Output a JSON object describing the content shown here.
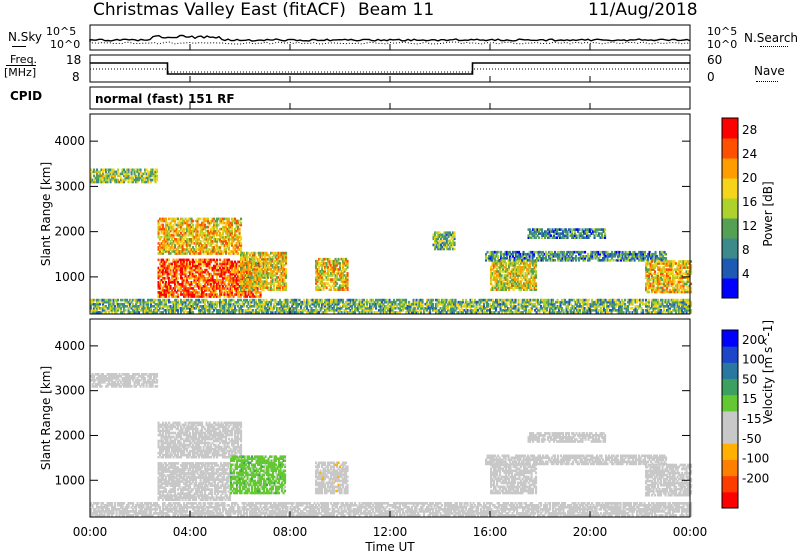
{
  "header": {
    "title": "Christmas Valley East (fitACF)",
    "beam": "Beam 11",
    "date": "11/Aug/2018"
  },
  "top_panels": {
    "nsky_label": "N.Sky",
    "nsearch_label": "N.Search",
    "count_ticks_left": [
      "10^5",
      "10^0"
    ],
    "count_ticks_right": [
      "10^5",
      "10^0"
    ],
    "freq_label_line1": "Freq.",
    "freq_label_line2": "[MHz]",
    "freq_ticks": [
      "18",
      "8"
    ],
    "nave_label": "Nave",
    "nave_ticks": [
      "60",
      "0"
    ],
    "cpid_label": "CPID",
    "cpid_value": "normal (fast) 151 RF"
  },
  "colors": {
    "power_scale": [
      "#0000ff",
      "#1e5ab4",
      "#3d8a8a",
      "#54a054",
      "#aed22c",
      "#f5d41a",
      "#ff9c00",
      "#ff5000",
      "#ff0000"
    ],
    "velocity_scale": [
      "#ff0000",
      "#ff3c00",
      "#ff8000",
      "#ffb000",
      "#c8c8c8",
      "#c8c8c8",
      "#64c832",
      "#3ca060",
      "#2878a0",
      "#1e46c8",
      "#0000ff"
    ],
    "ground_scatter": "#c8c8c8"
  },
  "chart_data": [
    {
      "type": "heatmap",
      "name": "power",
      "ylabel": "Slant Range [km]",
      "xlabel": "Time UT",
      "x_ticks": [
        "00:00",
        "04:00",
        "08:00",
        "12:00",
        "16:00",
        "20:00",
        "00:00"
      ],
      "x_range_hours": [
        0,
        24
      ],
      "y_ticks": [
        "1000",
        "2000",
        "3000",
        "4000"
      ],
      "y_range_km": [
        180,
        4600
      ],
      "colorbar": {
        "label": "Power [dB]",
        "ticks": [
          "4",
          "8",
          "12",
          "16",
          "20",
          "24",
          "28"
        ],
        "range": [
          0,
          30
        ]
      },
      "scatter_regions": [
        {
          "t0": 0.0,
          "t1": 2.7,
          "r0": 3080,
          "r1": 3380,
          "level": 14
        },
        {
          "t0": 2.7,
          "t1": 6.0,
          "r0": 1500,
          "r1": 2300,
          "level": 19
        },
        {
          "t0": 2.7,
          "t1": 6.8,
          "r0": 550,
          "r1": 1400,
          "level": 25
        },
        {
          "t0": 6.0,
          "t1": 7.8,
          "r0": 700,
          "r1": 1550,
          "level": 18
        },
        {
          "t0": 9.0,
          "t1": 10.3,
          "r0": 700,
          "r1": 1400,
          "level": 18
        },
        {
          "t0": 13.7,
          "t1": 14.6,
          "r0": 1600,
          "r1": 2000,
          "level": 12
        },
        {
          "t0": 16.0,
          "t1": 17.8,
          "r0": 700,
          "r1": 1350,
          "level": 17
        },
        {
          "t0": 17.5,
          "t1": 20.6,
          "r0": 1850,
          "r1": 2050,
          "level": 8
        },
        {
          "t0": 15.8,
          "t1": 23.0,
          "r0": 1350,
          "r1": 1560,
          "level": 9
        },
        {
          "t0": 22.2,
          "t1": 24.0,
          "r0": 650,
          "r1": 1350,
          "level": 19
        },
        {
          "t0": 0.0,
          "t1": 24.0,
          "r0": 200,
          "r1": 500,
          "level": 12
        }
      ]
    },
    {
      "type": "heatmap",
      "name": "velocity",
      "ylabel": "Slant Range [km]",
      "xlabel": "Time UT",
      "x_ticks": [
        "00:00",
        "04:00",
        "08:00",
        "12:00",
        "16:00",
        "20:00",
        "00:00"
      ],
      "x_range_hours": [
        0,
        24
      ],
      "y_ticks": [
        "1000",
        "2000",
        "3000",
        "4000"
      ],
      "y_range_km": [
        180,
        4600
      ],
      "colorbar": {
        "label": "Velocity [m s^-1]",
        "ticks": [
          "-200",
          "-100",
          "-50",
          "-15",
          "15",
          "50",
          "100",
          "200"
        ],
        "range": [
          -250,
          250
        ]
      },
      "scatter_regions": [
        {
          "t0": 0.0,
          "t1": 2.7,
          "r0": 3080,
          "r1": 3380,
          "velocity": 0
        },
        {
          "t0": 2.7,
          "t1": 6.0,
          "r0": 1500,
          "r1": 2300,
          "velocity": 0
        },
        {
          "t0": 2.7,
          "t1": 4.6,
          "r0": 550,
          "r1": 1400,
          "velocity": -40
        },
        {
          "t0": 4.6,
          "t1": 5.6,
          "r0": 550,
          "r1": 1400,
          "velocity": 0
        },
        {
          "t0": 5.6,
          "t1": 7.8,
          "r0": 700,
          "r1": 1550,
          "velocity": 45
        },
        {
          "t0": 9.0,
          "t1": 10.3,
          "r0": 700,
          "r1": 1400,
          "velocity": -45
        },
        {
          "t0": 16.0,
          "t1": 17.8,
          "r0": 700,
          "r1": 1350,
          "velocity": 0
        },
        {
          "t0": 17.5,
          "t1": 20.6,
          "r0": 1850,
          "r1": 2050,
          "velocity": 0
        },
        {
          "t0": 15.8,
          "t1": 23.0,
          "r0": 1350,
          "r1": 1560,
          "velocity": 0
        },
        {
          "t0": 22.2,
          "t1": 24.0,
          "r0": 650,
          "r1": 1350,
          "velocity": 0
        },
        {
          "t0": 0.0,
          "t1": 24.0,
          "r0": 200,
          "r1": 500,
          "velocity": -40
        }
      ]
    }
  ]
}
